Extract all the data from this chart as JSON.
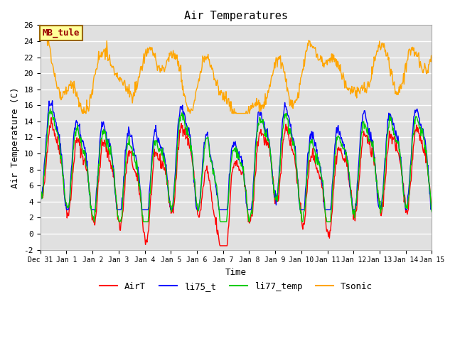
{
  "title": "Air Temperatures",
  "xlabel": "Time",
  "ylabel": "Air Temperature (C)",
  "ylim": [
    -2,
    26
  ],
  "xlim_days": [
    0,
    15
  ],
  "bg_color": "#e0e0e0",
  "grid_color": "white",
  "series_colors": {
    "AirT": "#ff0000",
    "li75_t": "#0000ff",
    "li77_temp": "#00cc00",
    "Tsonic": "#ffa500"
  },
  "legend_label": "MB_tule",
  "legend_box_color": "#ffff99",
  "legend_box_edge": "#996600",
  "font_family": "monospace"
}
